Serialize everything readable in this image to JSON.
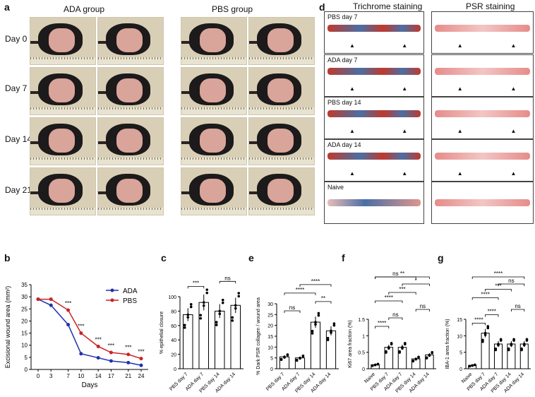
{
  "panel_labels": {
    "a": "a",
    "b": "b",
    "c": "c",
    "d": "d",
    "e": "e",
    "f": "f",
    "g": "g"
  },
  "panel_a": {
    "group_ada": "ADA group",
    "group_pbs": "PBS group",
    "days": [
      "Day 0",
      "Day 7",
      "Day 14",
      "Day 21"
    ]
  },
  "panel_d": {
    "col1_title": "Trichrome staining",
    "col2_title": "PSR  staining",
    "row_labels": [
      "PBS day 7",
      "ADA day 7",
      "PBS day 14",
      "ADA day 14",
      "Naive"
    ],
    "colors": {
      "trichrome_red": "#c0392b",
      "trichrome_blue": "#4a6fa5",
      "psr_red": "#d9534f"
    }
  },
  "chart_data": [
    {
      "panel": "b",
      "type": "line",
      "xlabel": "Days",
      "ylabel": "Excisional wound area (mm²)",
      "x": [
        0,
        3,
        7,
        10,
        14,
        17,
        21,
        24
      ],
      "ylim": [
        0,
        35
      ],
      "yticks": [
        0,
        5,
        10,
        15,
        20,
        25,
        30,
        35
      ],
      "series": [
        {
          "name": "ADA",
          "color": "#2233aa",
          "values": [
            29,
            26.5,
            18.5,
            6.5,
            4.8,
            3.5,
            2.8,
            1.7
          ]
        },
        {
          "name": "PBS",
          "color": "#cc2222",
          "values": [
            29,
            29,
            24.5,
            15,
            9.5,
            7,
            6.2,
            4.5
          ]
        }
      ],
      "annotations": [
        "***",
        "***",
        "***",
        "***",
        "***",
        "***"
      ]
    },
    {
      "panel": "c",
      "type": "bar",
      "ylabel": "% epithelial closure",
      "categories": [
        "PBS day 7",
        "ADA day 7",
        "PBS day 14",
        "ADA day 14"
      ],
      "values": [
        75,
        92,
        80,
        88
      ],
      "ylim": [
        0,
        100
      ],
      "yticks": [
        0,
        20,
        40,
        60,
        80,
        100
      ],
      "sig": [
        {
          "from": 0,
          "to": 1,
          "label": "***"
        },
        {
          "from": 2,
          "to": 3,
          "label": "ns"
        }
      ]
    },
    {
      "panel": "e",
      "type": "bar",
      "ylabel": "% Dark PSR collagen / wound area",
      "categories": [
        "PBS day 7",
        "ADA day 7",
        "PBS day 14",
        "ADA day 14"
      ],
      "values": [
        5.5,
        5,
        21.5,
        17.5
      ],
      "ylim": [
        0,
        30
      ],
      "yticks": [
        0,
        5,
        10,
        15,
        20,
        25,
        30
      ],
      "sig": [
        {
          "from": 0,
          "to": 1,
          "label": "ns"
        },
        {
          "from": 0,
          "to": 2,
          "label": "****"
        },
        {
          "from": 1,
          "to": 3,
          "label": "****"
        },
        {
          "from": 2,
          "to": 3,
          "label": "**"
        }
      ]
    },
    {
      "panel": "f",
      "type": "bar",
      "ylabel": "Ki67 area fraction (%)",
      "categories": [
        "Naive",
        "PBS day 7",
        "ADA day 7",
        "PBS day 14",
        "ADA day 14"
      ],
      "values": [
        0.12,
        0.65,
        0.65,
        0.3,
        0.42
      ],
      "ylim": [
        0,
        1.5
      ],
      "yticks": [
        0,
        0.5,
        1.0,
        1.5
      ],
      "sig": [
        {
          "from": 0,
          "to": 1,
          "label": "****"
        },
        {
          "from": 0,
          "to": 2,
          "label": "****"
        },
        {
          "from": 0,
          "to": 3,
          "label": "ns"
        },
        {
          "from": 0,
          "to": 4,
          "label": "**"
        },
        {
          "from": 1,
          "to": 2,
          "label": "ns"
        },
        {
          "from": 1,
          "to": 3,
          "label": "***"
        },
        {
          "from": 2,
          "to": 4,
          "label": "*"
        },
        {
          "from": 3,
          "to": 4,
          "label": "ns"
        }
      ]
    },
    {
      "panel": "g",
      "type": "bar",
      "ylabel": "IBA-1 area fraction (%)",
      "categories": [
        "Naive",
        "PBS day 7",
        "ADA day 7",
        "PBS day 14",
        "ADA day 14"
      ],
      "values": [
        1,
        10.8,
        7.5,
        7.5,
        7.5
      ],
      "ylim": [
        0,
        15
      ],
      "yticks": [
        0,
        5,
        10,
        15
      ],
      "sig": [
        {
          "from": 0,
          "to": 1,
          "label": "****"
        },
        {
          "from": 0,
          "to": 2,
          "label": "****"
        },
        {
          "from": 0,
          "to": 4,
          "label": "****"
        },
        {
          "from": 1,
          "to": 2,
          "label": "****"
        },
        {
          "from": 1,
          "to": 3,
          "label": "***"
        },
        {
          "from": 2,
          "to": 4,
          "label": "ns"
        },
        {
          "from": 3,
          "to": 4,
          "label": "ns"
        }
      ]
    }
  ]
}
